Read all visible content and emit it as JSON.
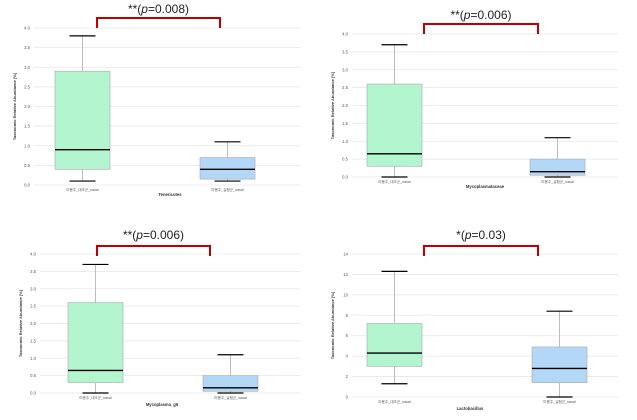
{
  "chart_data": [
    {
      "type": "box",
      "panel": "top-left",
      "xlabel": "Tenericutes",
      "ylabel": "Taxonomic Relative Abundance [%]",
      "ylim": [
        0,
        4.0
      ],
      "yticks": [
        "0.0",
        "0.5",
        "1.0",
        "1.5",
        "2.0",
        "2.5",
        "3.0",
        "3.5",
        "4.0"
      ],
      "ytick_values": [
        0,
        0.5,
        1.0,
        1.5,
        2.0,
        2.5,
        3.0,
        3.5,
        4.0
      ],
      "categories": [
        "미용주_대조군_nasal",
        "미용주_실험군_nasal"
      ],
      "boxes": [
        {
          "min": 0.1,
          "q1": 0.4,
          "median": 0.9,
          "q3": 2.9,
          "max": 3.8,
          "color": "#b3f5cf"
        },
        {
          "min": 0.1,
          "q1": 0.15,
          "median": 0.4,
          "q3": 0.7,
          "max": 1.1,
          "color": "#b3d7f7"
        }
      ],
      "annotation": {
        "stars": "**",
        "p_prefix": "(",
        "p_label": "p",
        "p_value": "=0.008)"
      }
    },
    {
      "type": "box",
      "panel": "top-right",
      "xlabel": "Mycoplasmataceae",
      "ylabel": "Taxonomic Relative Abundance [%]",
      "ylim": [
        0,
        4.0
      ],
      "yticks": [
        "0.0",
        "0.5",
        "1.0",
        "1.5",
        "2.0",
        "2.5",
        "3.0",
        "3.5",
        "4.0"
      ],
      "ytick_values": [
        0,
        0.5,
        1.0,
        1.5,
        2.0,
        2.5,
        3.0,
        3.5,
        4.0
      ],
      "categories": [
        "미용주_대조군_nasal",
        "미용주_실험군_nasal"
      ],
      "boxes": [
        {
          "min": 0.0,
          "q1": 0.3,
          "median": 0.65,
          "q3": 2.6,
          "max": 3.7,
          "color": "#b3f5cf"
        },
        {
          "min": 0.0,
          "q1": 0.05,
          "median": 0.15,
          "q3": 0.5,
          "max": 1.1,
          "color": "#b3d7f7"
        }
      ],
      "annotation": {
        "stars": "**",
        "p_prefix": "(",
        "p_label": "p",
        "p_value": "=0.006)"
      }
    },
    {
      "type": "box",
      "panel": "bottom-left",
      "xlabel": "Mycoplasma_g6",
      "ylabel": "Taxonomic Relative Abundance [%]",
      "ylim": [
        0,
        4.0
      ],
      "yticks": [
        "0.0",
        "0.5",
        "1.0",
        "1.5",
        "2.0",
        "2.5",
        "3.0",
        "3.5",
        "4.0"
      ],
      "ytick_values": [
        0,
        0.5,
        1.0,
        1.5,
        2.0,
        2.5,
        3.0,
        3.5,
        4.0
      ],
      "categories": [
        "미용주_대조군_nasal",
        "미용주_실험군_nasal"
      ],
      "boxes": [
        {
          "min": 0.0,
          "q1": 0.3,
          "median": 0.65,
          "q3": 2.6,
          "max": 3.7,
          "color": "#b3f5cf"
        },
        {
          "min": 0.0,
          "q1": 0.05,
          "median": 0.15,
          "q3": 0.5,
          "max": 1.1,
          "color": "#b3d7f7"
        }
      ],
      "annotation": {
        "stars": "**",
        "p_prefix": "(",
        "p_label": "p",
        "p_value": "=0.006)"
      }
    },
    {
      "type": "box",
      "panel": "bottom-right",
      "xlabel": "Lactobacillus",
      "ylabel": "Taxonomic Relative Abundance [%]",
      "ylim": [
        0,
        14
      ],
      "yticks": [
        "0",
        "2",
        "4",
        "6",
        "8",
        "10",
        "12",
        "14"
      ],
      "ytick_values": [
        0,
        2,
        4,
        6,
        8,
        10,
        12,
        14
      ],
      "categories": [
        "미용주_대조군_nasal",
        "미용주_실험군_nasal"
      ],
      "boxes": [
        {
          "min": 1.3,
          "q1": 3.0,
          "median": 4.3,
          "q3": 7.2,
          "max": 12.3,
          "color": "#b3f5cf"
        },
        {
          "min": 0.0,
          "q1": 1.4,
          "median": 2.8,
          "q3": 4.9,
          "max": 8.4,
          "color": "#b3d7f7"
        }
      ],
      "annotation": {
        "stars": "*",
        "p_prefix": "(",
        "p_label": "p",
        "p_value": "=0.03)"
      }
    }
  ]
}
